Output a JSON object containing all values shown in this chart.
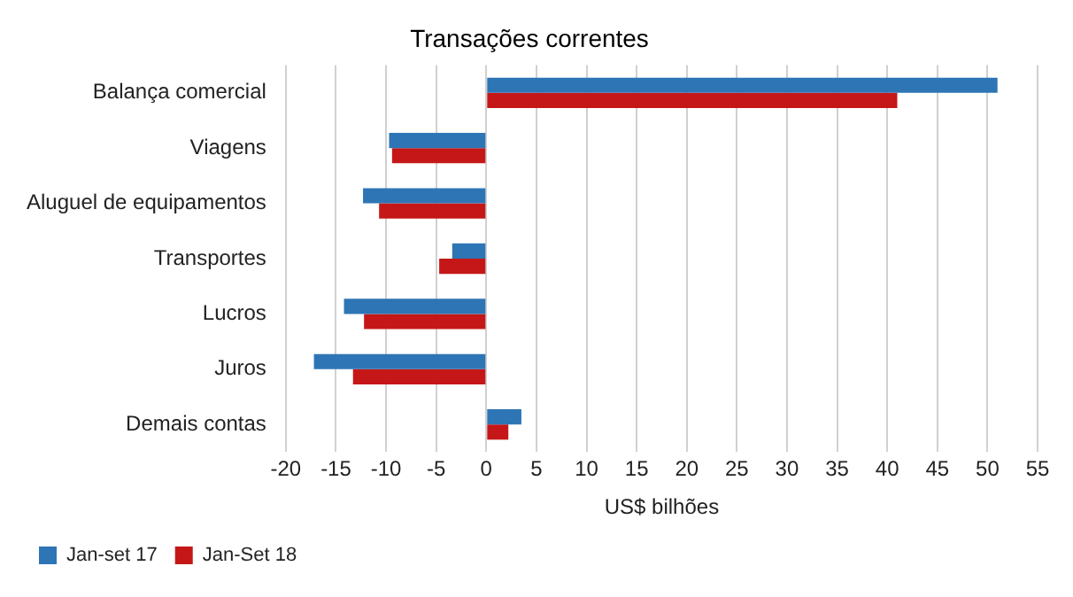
{
  "chart_data": {
    "type": "bar",
    "orientation": "horizontal",
    "title": "Transações correntes",
    "xlabel": "US$ bilhões",
    "categories": [
      "Balança comercial",
      "Viagens",
      "Aluguel de equipamentos",
      "Transportes",
      "Lucros",
      "Juros",
      "Demais contas"
    ],
    "series": [
      {
        "name": "Jan-set 17",
        "color": "#2e75b6",
        "values": [
          51.0,
          -9.7,
          -12.3,
          -3.4,
          -14.2,
          -17.2,
          3.5
        ]
      },
      {
        "name": "Jan-Set 18",
        "color": "#c51717",
        "values": [
          41.0,
          -9.4,
          -10.7,
          -4.7,
          -12.2,
          -13.3,
          2.2
        ]
      }
    ],
    "xlim": [
      -20,
      55
    ],
    "xticks": [
      -20,
      -15,
      -10,
      -5,
      0,
      5,
      10,
      15,
      20,
      25,
      30,
      35,
      40,
      45,
      50,
      55
    ],
    "grid": "x",
    "legend": "bottom left"
  }
}
